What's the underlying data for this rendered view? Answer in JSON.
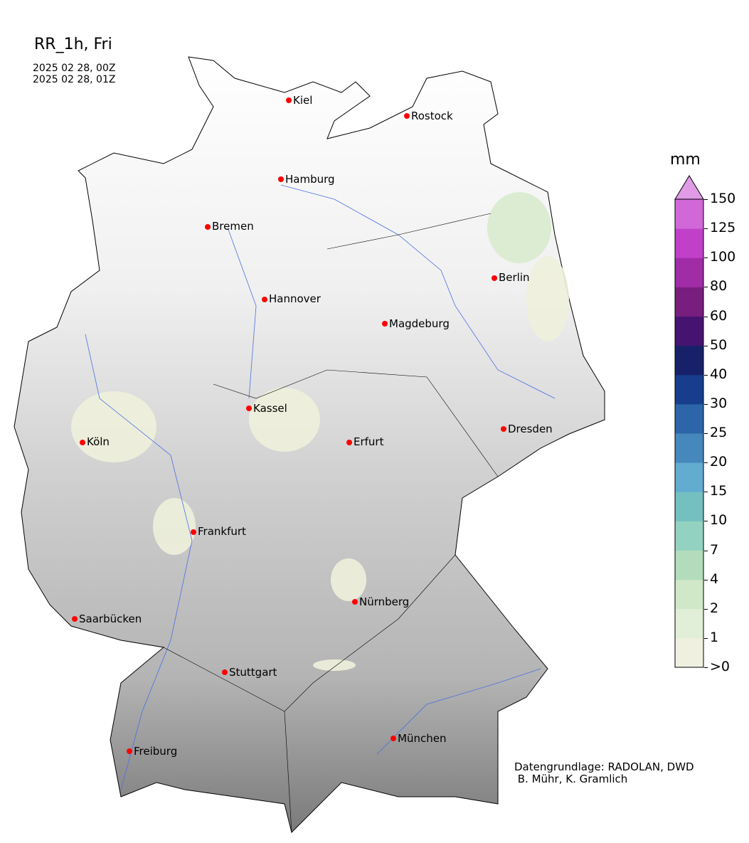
{
  "title": "RR_1h, Fri",
  "time_start": "2025 02 28, 00Z",
  "time_end": "2025 02 28, 01Z",
  "credit_line1": "Datengrundlage: RADOLAN, DWD",
  "credit_line2": " B. Mühr, K. Gramlich",
  "map": {
    "region": "Germany",
    "cities": [
      {
        "name": "Kiel"
      },
      {
        "name": "Rostock"
      },
      {
        "name": "Hamburg"
      },
      {
        "name": "Bremen"
      },
      {
        "name": "Berlin"
      },
      {
        "name": "Hannover"
      },
      {
        "name": "Magdeburg"
      },
      {
        "name": "Kassel"
      },
      {
        "name": "Dresden"
      },
      {
        "name": "Köln"
      },
      {
        "name": "Erfurt"
      },
      {
        "name": "Frankfurt"
      },
      {
        "name": "Nürnberg"
      },
      {
        "name": "Saarbücken"
      },
      {
        "name": "Stuttgart"
      },
      {
        "name": "München"
      },
      {
        "name": "Freiburg"
      }
    ],
    "city_marker_color": "#ff0000",
    "river_color": "#4a6fe3"
  },
  "colorbar": {
    "unit": "mm",
    "extend": "max",
    "ticks": [
      ">0",
      "1",
      "2",
      "4",
      "7",
      "10",
      "15",
      "20",
      "25",
      "30",
      "40",
      "50",
      "60",
      "80",
      "100",
      "125",
      "150"
    ],
    "colors": [
      "#f0f0e0",
      "#e2efd8",
      "#d0e8c8",
      "#b2dcbc",
      "#93d2c0",
      "#74c0c0",
      "#62acd0",
      "#4788bc",
      "#2c66a8",
      "#173e8c",
      "#17216a",
      "#461470",
      "#781e7e",
      "#a02ca6",
      "#c040c8",
      "#d068d8"
    ],
    "over_color": "#e09ae6"
  }
}
